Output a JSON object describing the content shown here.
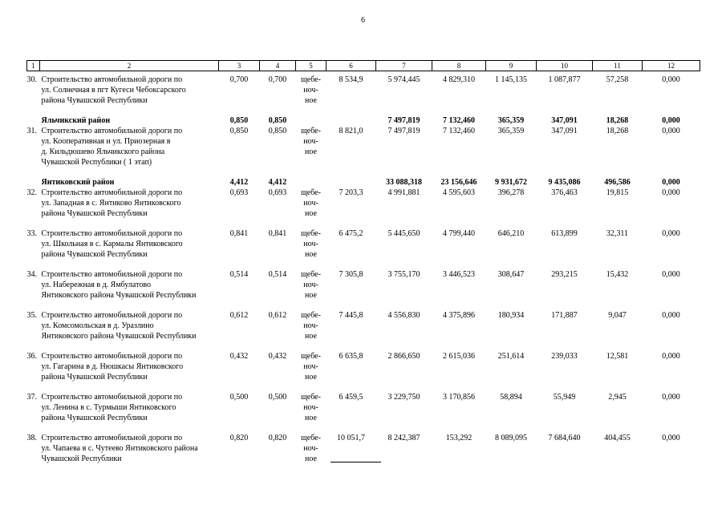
{
  "page_number": "6",
  "footnote_separator": true,
  "colors": {
    "text": "#000000",
    "background": "#ffffff",
    "border": "#000000"
  },
  "table": {
    "header_cols": [
      "1",
      "2",
      "3",
      "4",
      "5",
      "6",
      "7",
      "8",
      "9",
      "10",
      "11",
      "12"
    ],
    "rows": [
      {
        "type": "item",
        "num": "30.",
        "name": "Строительство автомобильной дороги по\nул. Солнечная в пгт Кугеси Чебоксарского\nрайона Чувашской Республики",
        "c3": "0,700",
        "c4": "0,700",
        "c5": "щебе-\nноч-\nное",
        "c6": "8 534,9",
        "c7": "5 974,445",
        "c8": "4 829,310",
        "c9": "1 145,135",
        "c10": "1 087,877",
        "c11": "57,258",
        "c12": "0,000"
      },
      {
        "type": "district",
        "num": "",
        "name": "Яльчикский район",
        "c3": "0,850",
        "c4": "0,850",
        "c5": "",
        "c6": "",
        "c7": "7 497,819",
        "c8": "7 132,460",
        "c9": "365,359",
        "c10": "347,091",
        "c11": "18,268",
        "c12": "0,000"
      },
      {
        "type": "item",
        "num": "31.",
        "name": "Строительство автомобильной дороги по\nул. Кооперативная и ул. Приозерная в\nд. Кильдюшево Яльчикского района\nЧувашской Республики ( 1 этап)",
        "c3": "0,850",
        "c4": "0,850",
        "c5": "щебе-\nноч-\nное",
        "c6": "8 821,0",
        "c7": "7 497,819",
        "c8": "7 132,460",
        "c9": "365,359",
        "c10": "347,091",
        "c11": "18,268",
        "c12": "0,000"
      },
      {
        "type": "district",
        "num": "",
        "name": "Янтиковский район",
        "c3": "4,412",
        "c4": "4,412",
        "c5": "",
        "c6": "",
        "c7": "33 088,318",
        "c8": "23 156,646",
        "c9": "9 931,672",
        "c10": "9 435,086",
        "c11": "496,586",
        "c12": "0,000"
      },
      {
        "type": "item",
        "num": "32.",
        "name": "Строительство автомобильной дороги по\nул. Западная в с. Янтиково Янтиковского\nрайона Чувашской Республики",
        "c3": "0,693",
        "c4": "0,693",
        "c5": "щебе-\nноч-\nное",
        "c6": "7 203,3",
        "c7": "4 991,881",
        "c8": "4 595,603",
        "c9": "396,278",
        "c10": "376,463",
        "c11": "19,815",
        "c12": "0,000"
      },
      {
        "type": "item",
        "num": "33.",
        "name": "Строительство автомобильной дороги по\nул. Школьная в с. Кармалы Янтиковского\nрайона Чувашской Республики",
        "c3": "0,841",
        "c4": "0,841",
        "c5": "щебе-\nноч-\nное",
        "c6": "6 475,2",
        "c7": "5 445,650",
        "c8": "4 799,440",
        "c9": "646,210",
        "c10": "613,899",
        "c11": "32,311",
        "c12": "0,000"
      },
      {
        "type": "item",
        "num": "34.",
        "name": "Строительство автомобильной дороги по\nул. Набережная в д. Ямбулатово\nЯнтиковского района Чувашской Республики",
        "c3": "0,514",
        "c4": "0,514",
        "c5": "щебе-\nноч-\nное",
        "c6": "7 305,8",
        "c7": "3 755,170",
        "c8": "3 446,523",
        "c9": "308,647",
        "c10": "293,215",
        "c11": "15,432",
        "c12": "0,000"
      },
      {
        "type": "item",
        "num": "35.",
        "name": "Строительство автомобильной дороги по\nул. Комсомольская в д. Уразлино\nЯнтиковского района Чувашской Республики",
        "c3": "0,612",
        "c4": "0,612",
        "c5": "щебе-\nноч-\nное",
        "c6": "7 445,8",
        "c7": "4 556,830",
        "c8": "4 375,896",
        "c9": "180,934",
        "c10": "171,887",
        "c11": "9,047",
        "c12": "0,000"
      },
      {
        "type": "item",
        "num": "36.",
        "name": "Строительство автомобильной дороги по\nул. Гагарина в д. Нюшкасы Янтиковского\nрайона Чувашской Республики",
        "c3": "0,432",
        "c4": "0,432",
        "c5": "щебе-\nноч-\nное",
        "c6": "6 635,8",
        "c7": "2 866,650",
        "c8": "2 615,036",
        "c9": "251,614",
        "c10": "239,033",
        "c11": "12,581",
        "c12": "0,000"
      },
      {
        "type": "item",
        "num": "37.",
        "name": "Строительство автомобильной дороги по\nул. Ленина в с. Турмыши Янтиковского\nрайона Чувашской Республики",
        "c3": "0,500",
        "c4": "0,500",
        "c5": "щебе-\nноч-\nное",
        "c6": "6 459,5",
        "c7": "3 229,750",
        "c8": "3 170,856",
        "c9": "58,894",
        "c10": "55,949",
        "c11": "2,945",
        "c12": "0,000"
      },
      {
        "type": "item",
        "num": "38.",
        "name": "Строительство автомобильной дороги по\nул. Чапаева в с. Чутеево Янтиковского района\nЧувашской Республики",
        "c3": "0,820",
        "c4": "0,820",
        "c5": "щебе-\nноч-\nное",
        "c6": "10 051,7",
        "c7": "8 242,387",
        "c8": "153,292",
        "c9": "8 089,095",
        "c10": "7 684,640",
        "c11": "404,455",
        "c12": "0,000"
      }
    ]
  }
}
